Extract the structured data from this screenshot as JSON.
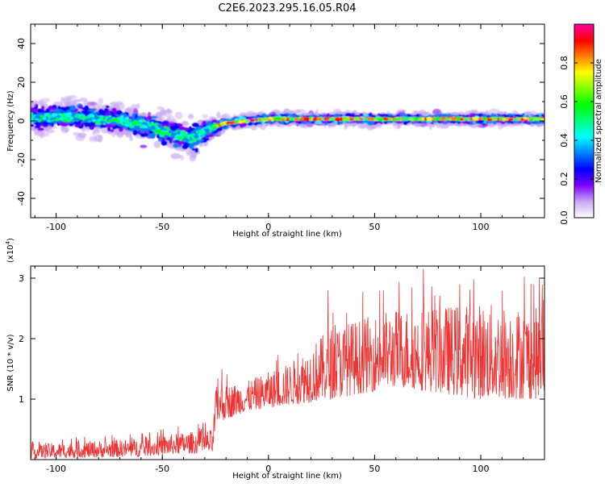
{
  "title": "C2E6.2023.295.16.05.R04",
  "chart_data": [
    {
      "type": "heatmap",
      "name": "spectrogram",
      "xlabel": "Height of straight line (km)",
      "ylabel": "Frequency (Hz)",
      "xlim": [
        -112,
        130
      ],
      "ylim": [
        -50,
        50
      ],
      "xticks": [
        -100,
        -50,
        0,
        50,
        100
      ],
      "yticks": [
        -40,
        -20,
        0,
        20,
        40
      ],
      "colorbar": {
        "label": "Normalized spectral amplitude",
        "range": [
          0.0,
          1.0
        ],
        "ticks": [
          "0.0",
          "0.2",
          "0.4",
          "0.6",
          "0.8"
        ],
        "colormap": [
          "#ffffff",
          "#c8a8f0",
          "#7f00ff",
          "#0000ff",
          "#0080ff",
          "#00ffff",
          "#00ff80",
          "#00ff00",
          "#80ff00",
          "#ffff00",
          "#ff8000",
          "#ff0000",
          "#ff00a0"
        ]
      },
      "trend": [
        {
          "x": -112,
          "y": 2,
          "spread": 9
        },
        {
          "x": -90,
          "y": 2,
          "spread": 9
        },
        {
          "x": -70,
          "y": 0,
          "spread": 9
        },
        {
          "x": -55,
          "y": -3,
          "spread": 9
        },
        {
          "x": -45,
          "y": -7,
          "spread": 10
        },
        {
          "x": -35,
          "y": -9,
          "spread": 10
        },
        {
          "x": -28,
          "y": -4,
          "spread": 6
        },
        {
          "x": -20,
          "y": -1,
          "spread": 3
        },
        {
          "x": 0,
          "y": 1,
          "spread": 3
        },
        {
          "x": 130,
          "y": 1,
          "spread": 3
        }
      ]
    },
    {
      "type": "line",
      "name": "snr",
      "xlabel": "Height of straight line (km)",
      "ylabel": "SNR (10 * v/v)",
      "y_multiplier": "(x10",
      "y_multiplier_exp": "4",
      "y_multiplier_close": ")",
      "xlim": [
        -112,
        130
      ],
      "ylim": [
        0,
        3.2
      ],
      "xticks": [
        -100,
        -50,
        0,
        50,
        100
      ],
      "yticks": [
        1,
        2,
        3
      ],
      "color": "#ee3333",
      "envelope": [
        {
          "x": -112,
          "low": 0.02,
          "high": 0.25
        },
        {
          "x": -90,
          "low": 0.03,
          "high": 0.3
        },
        {
          "x": -60,
          "low": 0.05,
          "high": 0.35
        },
        {
          "x": -40,
          "low": 0.1,
          "high": 0.45
        },
        {
          "x": -26,
          "low": 0.1,
          "high": 0.5
        },
        {
          "x": -25,
          "low": 0.6,
          "high": 1.2
        },
        {
          "x": -10,
          "low": 0.8,
          "high": 1.3
        },
        {
          "x": 10,
          "low": 0.9,
          "high": 1.6
        },
        {
          "x": 30,
          "low": 1.0,
          "high": 2.2
        },
        {
          "x": 60,
          "low": 1.2,
          "high": 2.5
        },
        {
          "x": 100,
          "low": 1.0,
          "high": 2.6
        },
        {
          "x": 130,
          "low": 1.0,
          "high": 2.5
        }
      ],
      "peaks": [
        {
          "x": -22,
          "y": 1.5
        },
        {
          "x": 28,
          "y": 2.8
        },
        {
          "x": 73,
          "y": 3.15
        },
        {
          "x": 90,
          "y": 2.9
        },
        {
          "x": 125,
          "y": 2.9
        }
      ]
    }
  ]
}
